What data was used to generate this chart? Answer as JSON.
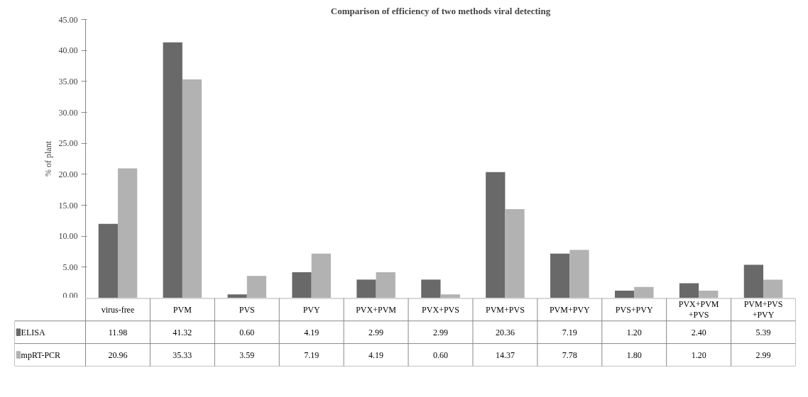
{
  "chart_data": {
    "type": "bar",
    "title": "Comparison of efficiency of two methods viral detecting",
    "ylabel": "% of plant",
    "categories": [
      "virus-free",
      "PVM",
      "PVS",
      "PVY",
      "PVX+PVM",
      "PVX+PVS",
      "PVM+PVS",
      "PVM+PVY",
      "PVS+PVY",
      "PVX+PVM+PVS",
      "PVM+PVS+PVY"
    ],
    "series": [
      {
        "name": "ELISA",
        "color": "#696969",
        "values": [
          11.98,
          41.32,
          0.6,
          4.19,
          2.99,
          2.99,
          20.36,
          7.19,
          1.2,
          2.4,
          5.39
        ],
        "value_labels": [
          "11.98",
          "41.32",
          "0.60",
          "4.19",
          "2.99",
          "2.99",
          "20.36",
          "7.19",
          "1.20",
          "2.40",
          "5.39"
        ]
      },
      {
        "name": "mpRT-PCR",
        "color": "#b2b2b2",
        "values": [
          20.96,
          35.33,
          3.59,
          7.19,
          4.19,
          0.6,
          14.37,
          7.78,
          1.8,
          1.2,
          2.99
        ],
        "value_labels": [
          "20.96",
          "35.33",
          "3.59",
          "7.19",
          "4.19",
          "0.60",
          "14.37",
          "7.78",
          "1.80",
          "1.20",
          "2.99"
        ]
      }
    ],
    "ylim": [
      0,
      45
    ],
    "yticks": [
      {
        "value": 0,
        "label": "0.00"
      },
      {
        "value": 5,
        "label": "5.00"
      },
      {
        "value": 10,
        "label": "10.00"
      },
      {
        "value": 15,
        "label": "15.00"
      },
      {
        "value": 20,
        "label": "20.00"
      },
      {
        "value": 25,
        "label": "25.00"
      },
      {
        "value": 30,
        "label": "30.00"
      },
      {
        "value": 35,
        "label": "35.00"
      },
      {
        "value": 40,
        "label": "40.00"
      },
      {
        "value": 45,
        "label": "45.00"
      }
    ],
    "grid": false,
    "legend": "bottom"
  }
}
